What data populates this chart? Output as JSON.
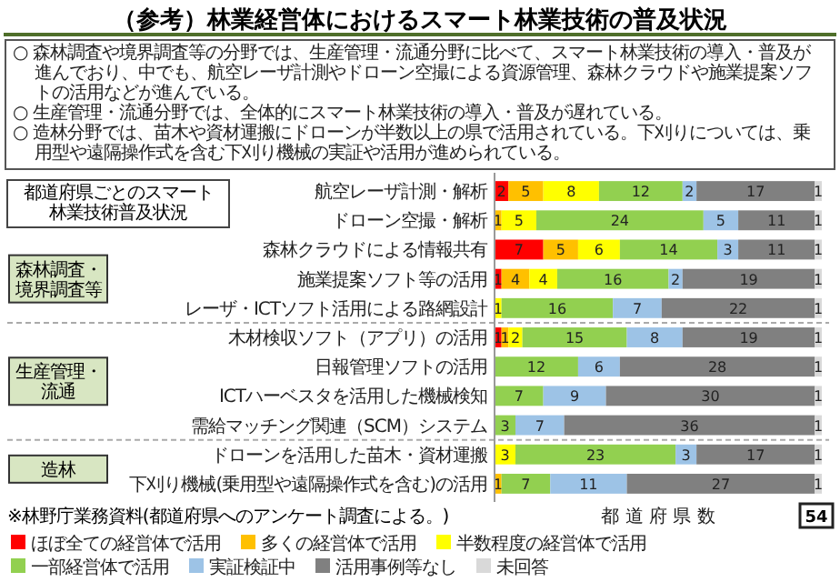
{
  "chart_data": {
    "type": "bar",
    "orientation": "horizontal",
    "stacked": true,
    "data_labels": true,
    "tick_labels": "y",
    "legend": "bottom",
    "title": "（参考）林業経営体におけるスマート林業技術の普及状況",
    "xlabel": "都 道 府 県 数",
    "categories": [
      "航空レーザ計測・解析",
      "ドローン空撮・解析",
      "森林クラウドによる情報共有",
      "施業提案ソフト等の活用",
      "レーザ・ICTソフト活用による路網設計",
      "木材検収ソフト（アプリ）の活用",
      "日報管理ソフトの活用",
      "ICTハーベスタを活用した機械検知",
      "需給マッチング関連（SCM）システム",
      "ドローンを活用した苗木・資材運搬",
      "下刈り機械(乗用型や遠隔操作式を含む)の活用"
    ],
    "series": [
      {
        "name": "ほぼ全ての経営体で活用",
        "color": "#ff0000",
        "values": [
          2,
          null,
          7,
          1,
          null,
          1,
          null,
          null,
          null,
          null,
          null
        ]
      },
      {
        "name": "多くの経営体で活用",
        "color": "#ffc000",
        "values": [
          5,
          1,
          5,
          4,
          null,
          1,
          null,
          null,
          null,
          null,
          1
        ]
      },
      {
        "name": "半数程度の経営体で活用",
        "color": "#ffff00",
        "values": [
          8,
          5,
          6,
          4,
          1,
          2,
          null,
          null,
          null,
          3,
          null
        ]
      },
      {
        "name": "一部経営体で活用",
        "color": "#92d050",
        "values": [
          12,
          24,
          14,
          16,
          16,
          15,
          12,
          7,
          3,
          23,
          7
        ]
      },
      {
        "name": "実証検証中",
        "color": "#9dc3e6",
        "values": [
          2,
          5,
          3,
          2,
          7,
          8,
          6,
          9,
          7,
          3,
          11
        ]
      },
      {
        "name": "活用事例等なし",
        "color": "#808080",
        "values": [
          17,
          11,
          11,
          19,
          22,
          19,
          28,
          30,
          36,
          17,
          27
        ]
      },
      {
        "name": "未回答",
        "color": "#d9d9d9",
        "values": [
          1,
          1,
          1,
          1,
          1,
          1,
          1,
          1,
          1,
          1,
          1
        ]
      }
    ],
    "annotations": [
      "○ 森林調査や境界調査等の分野では、生産管理・流通分野に比べて、スマート林業技術の導入・普及が進んでおり、中でも、航空レーザ計測やドローン空撮による資源管理、森林クラウドや施業提案ソフトの活用などが進んでいる。",
      "○ 生産管理・流通分野では、全体的にスマート林業技術の導入・普及が遅れている。",
      "○ 造林分野では、苗木や資材運搬にドローンが半数以上の県で活用されている。下刈りについては、乗用型や遠隔操作式を含む下刈り機械の実証や活用が進められている。",
      "都道府県ごとのスマート林業技術普及状況",
      "森林調査・境界調査等",
      "生産管理・流通",
      "造林",
      "※林野庁業務資料",
      "(都道府県へのアンケート調査による。)",
      "54"
    ]
  }
}
